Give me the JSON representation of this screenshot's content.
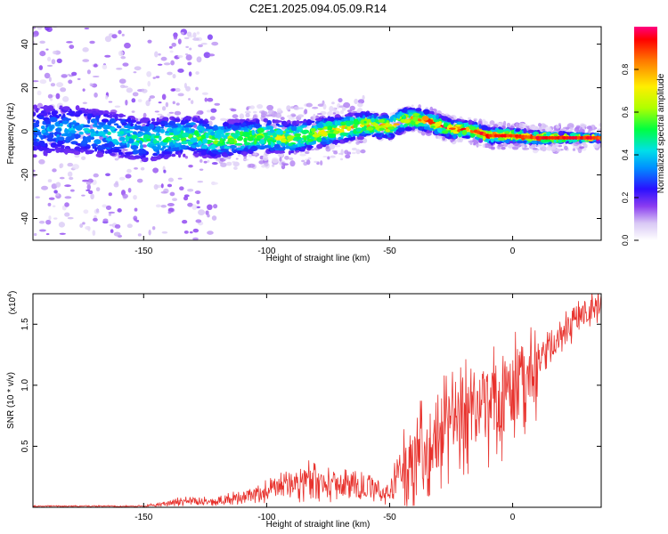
{
  "title": "C2E1.2025.094.05.09.R14",
  "chart_data": [
    {
      "type": "heatmap",
      "xlabel": "Height of straight line (km)",
      "ylabel": "Frequency (Hz)",
      "xlim": [
        -195,
        36
      ],
      "ylim": [
        -50,
        48
      ],
      "xticks": [
        -150,
        -100,
        -50,
        0
      ],
      "yticks": [
        -40,
        -20,
        0,
        20,
        40
      ],
      "colorbar": {
        "label": "Normalized spectral amplitude",
        "range": [
          0,
          1
        ],
        "ticks": [
          "0.0",
          "0.2",
          "0.4",
          "0.6",
          "0.8"
        ]
      },
      "ridge_frequency": {
        "x": [
          -195,
          -180,
          -160,
          -150,
          -140,
          -130,
          -120,
          -110,
          -100,
          -90,
          -80,
          -70,
          -60,
          -50,
          -45,
          -40,
          -35,
          -30,
          -25,
          -20,
          -15,
          -10,
          0,
          10,
          20,
          30,
          36
        ],
        "y": [
          0,
          1,
          -2,
          -4,
          -3,
          -2,
          -4,
          -3,
          -2,
          -3,
          -1,
          1,
          3,
          2,
          5,
          6,
          5,
          3,
          1,
          1,
          0,
          -2,
          -2,
          -3,
          -3,
          -3,
          -3
        ]
      }
    },
    {
      "type": "line",
      "xlabel": "Height of straight line (km)",
      "ylabel": "SNR (10 * v/v)",
      "y_multiplier": "(x10",
      "y_multiplier_exp": "4",
      "y_multiplier_close": ")",
      "xlim": [
        -195,
        36
      ],
      "ylim": [
        0,
        1.75
      ],
      "xticks": [
        -150,
        -100,
        -50,
        0
      ],
      "yticks": [
        0.5,
        1.0,
        1.5
      ],
      "ytick_labels": [
        "0.5",
        "1.0",
        "1.5"
      ],
      "color": "#e8322d",
      "series": [
        {
          "x": [
            -195,
            -170,
            -150,
            -140,
            -135,
            -120,
            -105,
            -90,
            -85,
            -75,
            -65,
            -55,
            -50,
            -47,
            -45,
            -40,
            -35,
            -30,
            -25,
            -20,
            -15,
            -10,
            -5,
            0,
            5,
            10,
            15,
            20,
            25,
            30,
            36
          ],
          "y": [
            0.0,
            0.0,
            0.01,
            0.03,
            0.05,
            0.05,
            0.1,
            0.18,
            0.22,
            0.2,
            0.17,
            0.15,
            0.1,
            0.3,
            0.25,
            0.38,
            0.48,
            0.6,
            0.68,
            0.75,
            0.8,
            0.82,
            0.85,
            0.95,
            1.05,
            1.2,
            1.3,
            1.42,
            1.5,
            1.6,
            1.68
          ]
        }
      ]
    }
  ]
}
